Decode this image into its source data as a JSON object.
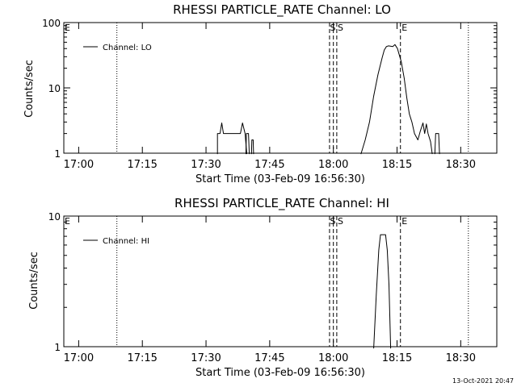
{
  "timestamp": "13-Oct-2021 20:47",
  "chart_data": [
    {
      "type": "line",
      "title": "RHESSI PARTICLE_RATE Channel: LO",
      "xlabel": "Start Time (03-Feb-09 16:56:30)",
      "ylabel": "Counts/sec",
      "x_unit": "minutes since 16:56:30",
      "x_range": [
        0,
        102
      ],
      "y_scale": "log",
      "ylim": [
        1,
        100
      ],
      "x_tick_labels": [
        "17:00",
        "17:15",
        "17:30",
        "17:45",
        "18:00",
        "18:15",
        "18:30"
      ],
      "x_tick_values": [
        3.5,
        18.5,
        33.5,
        48.5,
        63.5,
        78.5,
        93.5
      ],
      "y_tick_labels": [
        "1",
        "10",
        "100"
      ],
      "y_tick_values": [
        1,
        10,
        100
      ],
      "legend": {
        "label": "Channel: LO",
        "position": "top-left"
      },
      "vlines": [
        {
          "x": 12.5,
          "style": "dotted"
        },
        {
          "x": 62.6,
          "style": "dashed"
        },
        {
          "x": 63.5,
          "style": "dashed"
        },
        {
          "x": 64.3,
          "style": "dashed"
        },
        {
          "x": 79.3,
          "style": "dashed"
        },
        {
          "x": 95.3,
          "style": "dotted"
        }
      ],
      "annotations": [
        {
          "text": "E",
          "x": 0.2
        },
        {
          "text": "S",
          "x": 62.7
        },
        {
          "text": "S",
          "x": 64.5
        },
        {
          "text": "E",
          "x": 79.6
        }
      ],
      "series": [
        {
          "name": "Channel: LO",
          "segments": [
            [
              [
                36.2,
                0.97
              ],
              [
                36.2,
                2.0
              ],
              [
                36.8,
                2.0
              ],
              [
                37.2,
                2.9
              ],
              [
                37.6,
                2.0
              ],
              [
                41.6,
                2.0
              ],
              [
                42.1,
                2.9
              ],
              [
                42.7,
                2.0
              ],
              [
                43.1,
                0.97
              ]
            ],
            [
              [
                42.9,
                0.97
              ],
              [
                43.0,
                2.0
              ],
              [
                43.5,
                2.0
              ],
              [
                43.7,
                0.97
              ]
            ],
            [
              [
                44.2,
                0.97
              ],
              [
                44.3,
                1.6
              ],
              [
                44.6,
                1.6
              ],
              [
                44.7,
                0.97
              ]
            ],
            [
              [
                70.0,
                0.97
              ],
              [
                71.0,
                1.6
              ],
              [
                72.0,
                3.0
              ],
              [
                73.0,
                7.5
              ],
              [
                74.0,
                16
              ],
              [
                75.0,
                29
              ],
              [
                75.5,
                38
              ],
              [
                76.0,
                43
              ],
              [
                76.5,
                44
              ],
              [
                77.5,
                43
              ],
              [
                78.0,
                46
              ],
              [
                78.6,
                40
              ],
              [
                79.5,
                25
              ],
              [
                80.2,
                14
              ],
              [
                80.8,
                7
              ],
              [
                81.4,
                4.0
              ],
              [
                82.0,
                3.0
              ],
              [
                82.6,
                2.0
              ],
              [
                83.4,
                1.6
              ],
              [
                84.0,
                2.2
              ],
              [
                84.6,
                2.9
              ],
              [
                85.0,
                2.0
              ],
              [
                85.4,
                2.8
              ],
              [
                85.8,
                2.0
              ],
              [
                86.4,
                1.5
              ],
              [
                86.8,
                0.97
              ]
            ],
            [
              [
                87.4,
                0.97
              ],
              [
                87.6,
                2.0
              ],
              [
                88.3,
                2.0
              ],
              [
                88.5,
                0.97
              ]
            ]
          ]
        }
      ]
    },
    {
      "type": "line",
      "title": "RHESSI PARTICLE_RATE Channel: HI",
      "xlabel": "Start Time (03-Feb-09 16:56:30)",
      "ylabel": "Counts/sec",
      "x_unit": "minutes since 16:56:30",
      "x_range": [
        0,
        102
      ],
      "y_scale": "log",
      "ylim": [
        1,
        10
      ],
      "x_tick_labels": [
        "17:00",
        "17:15",
        "17:30",
        "17:45",
        "18:00",
        "18:15",
        "18:30"
      ],
      "x_tick_values": [
        3.5,
        18.5,
        33.5,
        48.5,
        63.5,
        78.5,
        93.5
      ],
      "y_tick_labels": [
        "1",
        "10"
      ],
      "y_tick_values": [
        1,
        10
      ],
      "legend": {
        "label": "Channel: HI",
        "position": "top-left"
      },
      "vlines": [
        {
          "x": 12.5,
          "style": "dotted"
        },
        {
          "x": 62.6,
          "style": "dashed"
        },
        {
          "x": 63.5,
          "style": "dashed"
        },
        {
          "x": 64.3,
          "style": "dashed"
        },
        {
          "x": 79.3,
          "style": "dashed"
        },
        {
          "x": 95.3,
          "style": "dotted"
        }
      ],
      "annotations": [
        {
          "text": "E",
          "x": 0.2
        },
        {
          "text": "S",
          "x": 62.7
        },
        {
          "text": "S",
          "x": 64.5
        },
        {
          "text": "E",
          "x": 79.6
        }
      ],
      "series": [
        {
          "name": "Channel: HI",
          "segments": [
            [
              [
                73.0,
                0.97
              ],
              [
                73.6,
                2.5
              ],
              [
                74.2,
                5.5
              ],
              [
                74.6,
                7.2
              ],
              [
                75.8,
                7.2
              ],
              [
                76.2,
                5.5
              ],
              [
                76.6,
                3.0
              ],
              [
                77.0,
                0.97
              ]
            ]
          ]
        }
      ]
    }
  ]
}
